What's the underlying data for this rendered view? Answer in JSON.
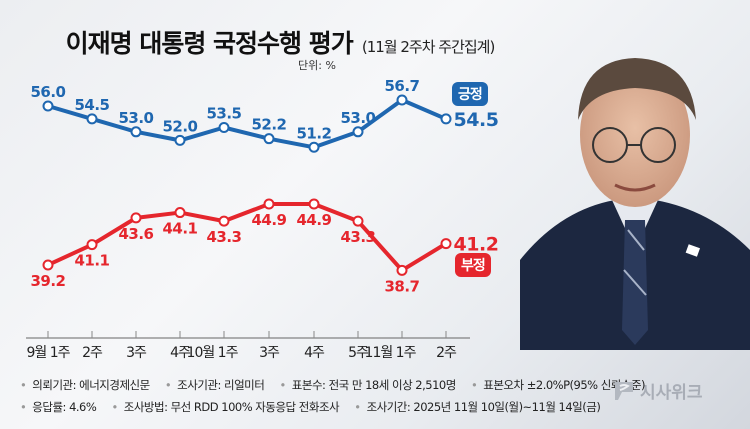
{
  "header": {
    "title": "이재명 대통령 국정수행 평가",
    "subtitle": "(11월 2주차 주간집계)",
    "unit": "단위: %"
  },
  "legend": {
    "positive": "긍정",
    "negative": "부정"
  },
  "colors": {
    "positive": "#1f67b0",
    "negative": "#e5262d"
  },
  "chart_data": {
    "type": "line",
    "title": "이재명 대통령 국정수행 평가 (11월 2주차 주간집계)",
    "ylabel": "단위: %",
    "categories": [
      "9월 1주",
      "2주",
      "3주",
      "4주",
      "10월 1주",
      "3주",
      "4주",
      "5주",
      "11월 1주",
      "2주"
    ],
    "series": [
      {
        "name": "긍정",
        "color": "#1f67b0",
        "values": [
          56.0,
          54.5,
          53.0,
          52.0,
          53.5,
          52.2,
          51.2,
          53.0,
          56.7,
          54.5
        ]
      },
      {
        "name": "부정",
        "color": "#e5262d",
        "values": [
          39.2,
          41.1,
          43.6,
          44.1,
          43.3,
          44.9,
          44.9,
          43.3,
          38.7,
          41.2
        ]
      }
    ],
    "grid": false,
    "legend_position": "right-end labels"
  },
  "xaxis": {
    "labels": [
      "9월 1주",
      "2주",
      "3주",
      "4주",
      "10월 1주",
      "3주",
      "4주",
      "5주",
      "11월 1주",
      "2주"
    ]
  },
  "footer": {
    "row1": [
      "의뢰기관: 에너지경제신문",
      "조사기관: 리얼미터",
      "표본수: 전국 만 18세 이상 2,510명",
      "표본오차 ±2.0%P(95% 신뢰수준)"
    ],
    "row2": [
      "응답률: 4.6%",
      "조사방법: 무선 RDD 100% 자동응답 전화조사",
      "조사기간: 2025년 11월 10일(월)~11월 14일(금)"
    ]
  },
  "logo": {
    "text": "시사위크"
  }
}
